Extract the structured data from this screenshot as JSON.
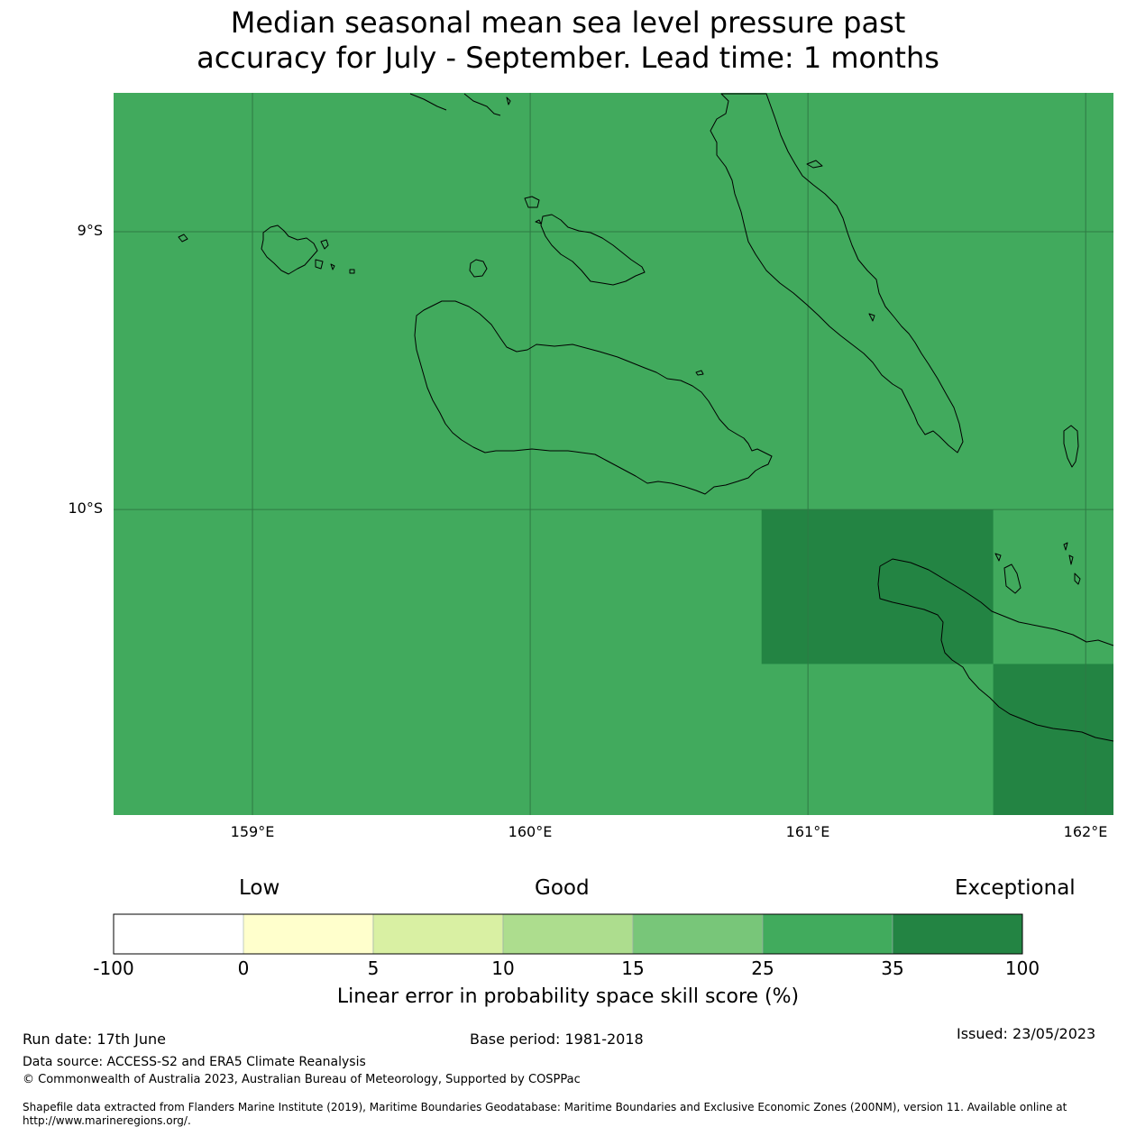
{
  "title": "Median seasonal mean sea level pressure past\naccuracy for July - September. Lead time: 1 months",
  "map": {
    "longitude_range": [
      158.5,
      162.1
    ],
    "latitude_range": [
      -11.1,
      -8.5
    ],
    "lat_ticks": [
      {
        "value": -9,
        "label": "9°S"
      },
      {
        "value": -10,
        "label": "10°S"
      }
    ],
    "lon_ticks": [
      {
        "value": 159,
        "label": "159°E"
      },
      {
        "value": 160,
        "label": "160°E"
      },
      {
        "value": 161,
        "label": "161°E"
      },
      {
        "value": 162,
        "label": "162°E"
      }
    ],
    "background_color": "#41aa5d",
    "high_skill_color": "#238443",
    "high_skill_cells": [
      {
        "lon": [
          160.833,
          161.667
        ],
        "lat": [
          -10.0,
          -10.556
        ],
        "category": "35-100"
      },
      {
        "lon": [
          161.667,
          162.1
        ],
        "lat": [
          -10.556,
          -11.1
        ],
        "category": "35-100"
      }
    ],
    "gridline_color": "#2f7a44",
    "coastline_color": "#000000"
  },
  "colorbar": {
    "qualitative_labels": [
      "Low",
      "Good",
      "Exceptional"
    ],
    "tick_labels": [
      "-100",
      "0",
      "5",
      "10",
      "15",
      "25",
      "35",
      "100"
    ],
    "colors": [
      "#ffffff",
      "#ffffcc",
      "#d9f0a3",
      "#addd8e",
      "#78c679",
      "#41ab5d",
      "#238443"
    ],
    "label": "Linear error in probability space skill score (%)"
  },
  "footer": {
    "run_date": "Run date: 17th June",
    "base_period": "Base period: 1981-2018",
    "issued": "Issued: 23/05/2023",
    "data_source": "Data source: ACCESS-S2 and ERA5 Climate Reanalysis",
    "copyright": "© Commonwealth of Australia 2023, Australian Bureau of Meteorology, Supported by COSPPac",
    "shapefile_line1": "Shapefile data extracted from Flanders Marine Institute (2019), Maritime Boundaries Geodatabase: Maritime Boundaries and Exclusive Economic Zones (200NM), version 11. Available online at",
    "shapefile_line2": "http://www.marineregions.org/."
  }
}
